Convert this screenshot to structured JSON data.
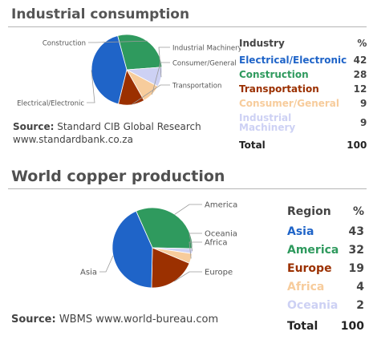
{
  "industrial": {
    "title": "Industrial consumption",
    "source_label": "Source:",
    "source_text": "Standard CIB Global Research",
    "source_url": "www.standardbank.co.za",
    "col_name": "Industry",
    "col_pct": "%",
    "total_label": "Total",
    "total_value": "100",
    "colors": {
      "Electrical/Electronic": "#1f64c8",
      "Construction": "#2f9a5e",
      "Transportation": "#9b3000",
      "Consumer/General": "#f7cc9c",
      "Industrial Machinery": "#cdd1f4"
    }
  },
  "copper": {
    "title": "World copper production",
    "source_label": "Source:",
    "source_text": "WBMS www.world-bureau.com",
    "col_name": "Region",
    "col_pct": "%",
    "total_label": "Total",
    "total_value": "100",
    "colors": {
      "Asia": "#1f64c8",
      "America": "#2f9a5e",
      "Europe": "#9b3000",
      "Africa": "#f7cc9c",
      "Oceania": "#cdd1f4"
    }
  },
  "chart_data": [
    {
      "type": "pie",
      "title": "Industrial consumption",
      "categories": [
        "Electrical/Electronic",
        "Construction",
        "Transportation",
        "Consumer/General",
        "Industrial Machinery"
      ],
      "values": [
        42,
        28,
        12,
        9,
        9
      ],
      "slice_labels": [
        "Electrical/Electronic",
        "Construction",
        "Transportation",
        "Consumer/General",
        "Industrial Machinery"
      ],
      "total": 100
    },
    {
      "type": "pie",
      "title": "World copper production",
      "categories": [
        "Asia",
        "America",
        "Europe",
        "Africa",
        "Oceania"
      ],
      "values": [
        43,
        32,
        19,
        4,
        2
      ],
      "slice_labels": [
        "Asia",
        "America",
        "Europe",
        "Africa",
        "Oceania"
      ],
      "total": 100
    }
  ]
}
